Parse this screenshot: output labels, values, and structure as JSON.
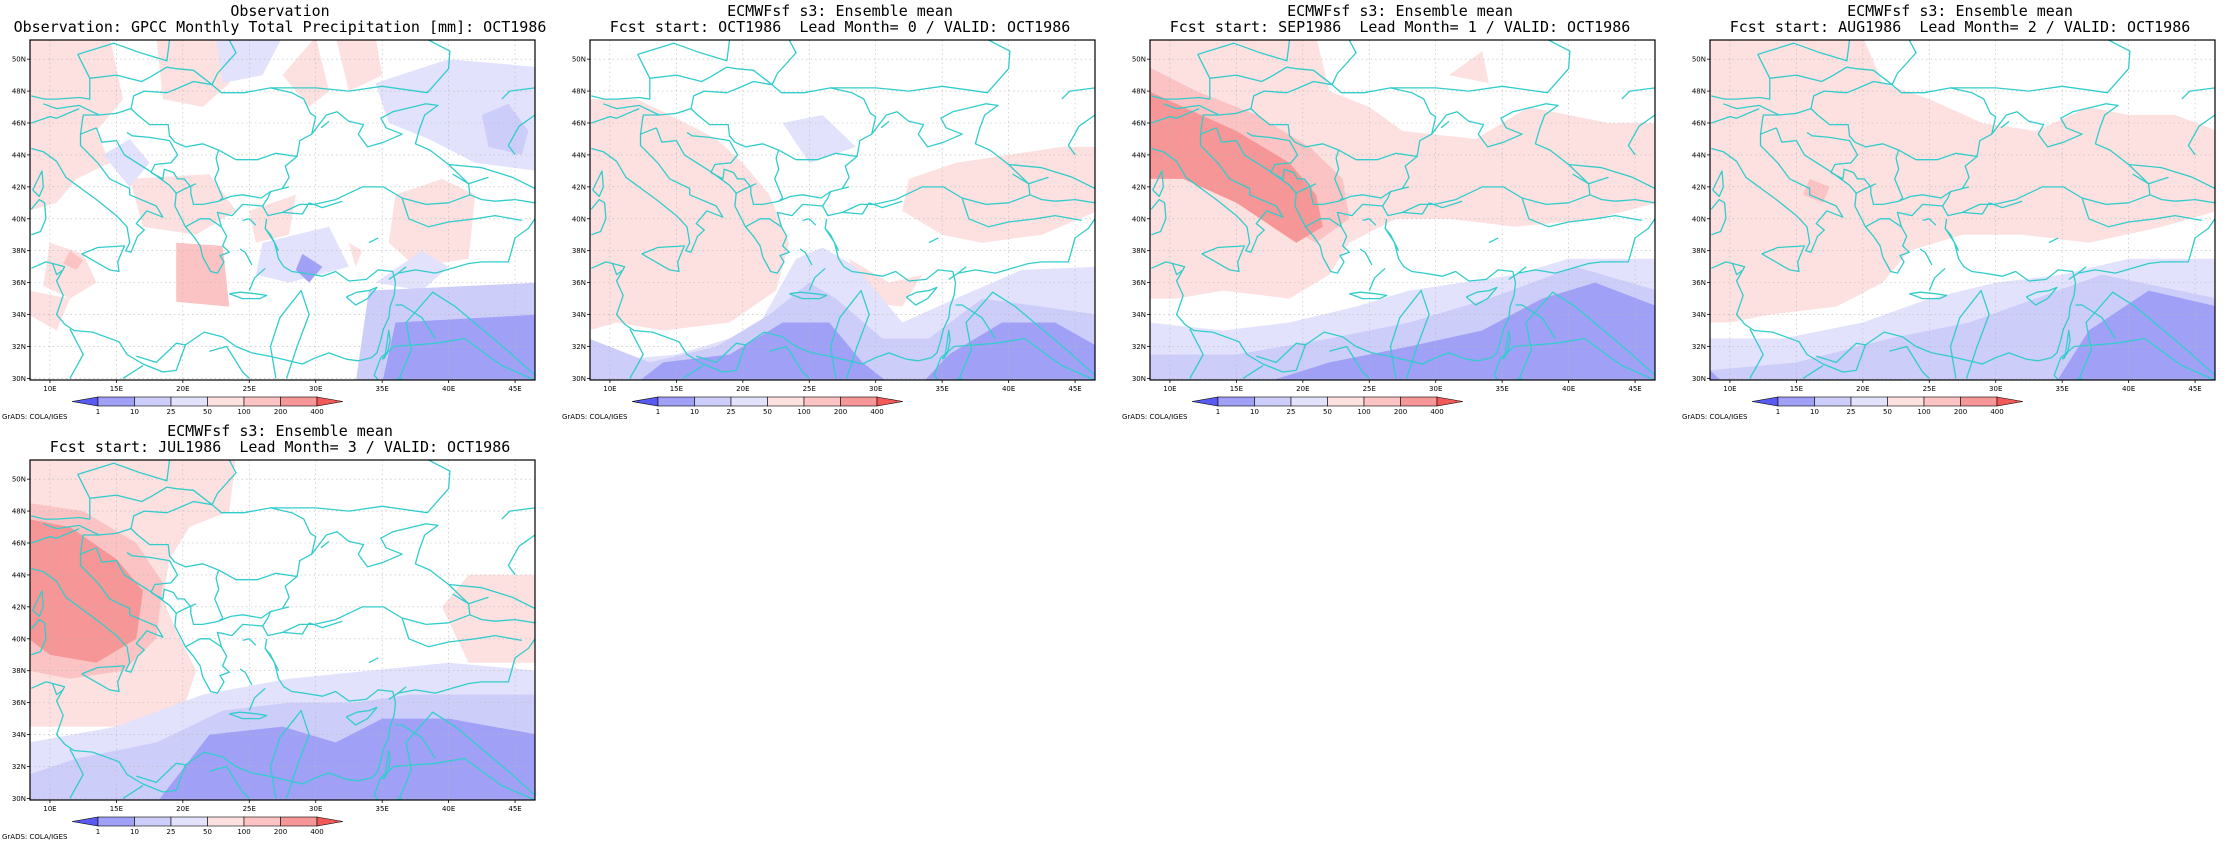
{
  "figure": {
    "panels": [
      {
        "id": "obs",
        "title_line1": "Observation",
        "title_line2": "Observation: GPCC Monthly Total Precipitation [mm]: OCT1986"
      },
      {
        "id": "lead0",
        "title_line1": "ECMWFsf s3: Ensemble mean",
        "title_line2": "Fcst start: OCT1986  Lead Month= 0 / VALID: OCT1986"
      },
      {
        "id": "lead1",
        "title_line1": "ECMWFsf s3: Ensemble mean",
        "title_line2": "Fcst start: SEP1986  Lead Month= 1 / VALID: OCT1986"
      },
      {
        "id": "lead2",
        "title_line1": "ECMWFsf s3: Ensemble mean",
        "title_line2": "Fcst start: AUG1986  Lead Month= 2 / VALID: OCT1986"
      },
      {
        "id": "lead3",
        "title_line1": "ECMWFsf s3: Ensemble mean",
        "title_line2": "Fcst start: JUL1986  Lead Month= 3 / VALID: OCT1986"
      }
    ],
    "lat_labels": [
      "30N",
      "32N",
      "34N",
      "36N",
      "38N",
      "40N",
      "42N",
      "44N",
      "46N",
      "48N",
      "50N"
    ],
    "lon_labels": [
      "10E",
      "15E",
      "20E",
      "25E",
      "30E",
      "35E",
      "40E",
      "45E"
    ],
    "colorbar": {
      "labels": [
        "1",
        "10",
        "25",
        "50",
        "100",
        "200",
        "400"
      ],
      "colors": [
        "#5a5af2",
        "#a0a0f6",
        "#cdcdfa",
        "#e2e2fc",
        "#fde0e0",
        "#fbc3c3",
        "#f69696",
        "#f25a5a"
      ]
    },
    "credit": "GrADS: COLA/IGES",
    "colors": {
      "coast": "#33cccc",
      "wet": "#f7a3a3",
      "wetter": "#f58080",
      "dry": "#d2d2fa",
      "drier": "#a6a6f5"
    }
  }
}
